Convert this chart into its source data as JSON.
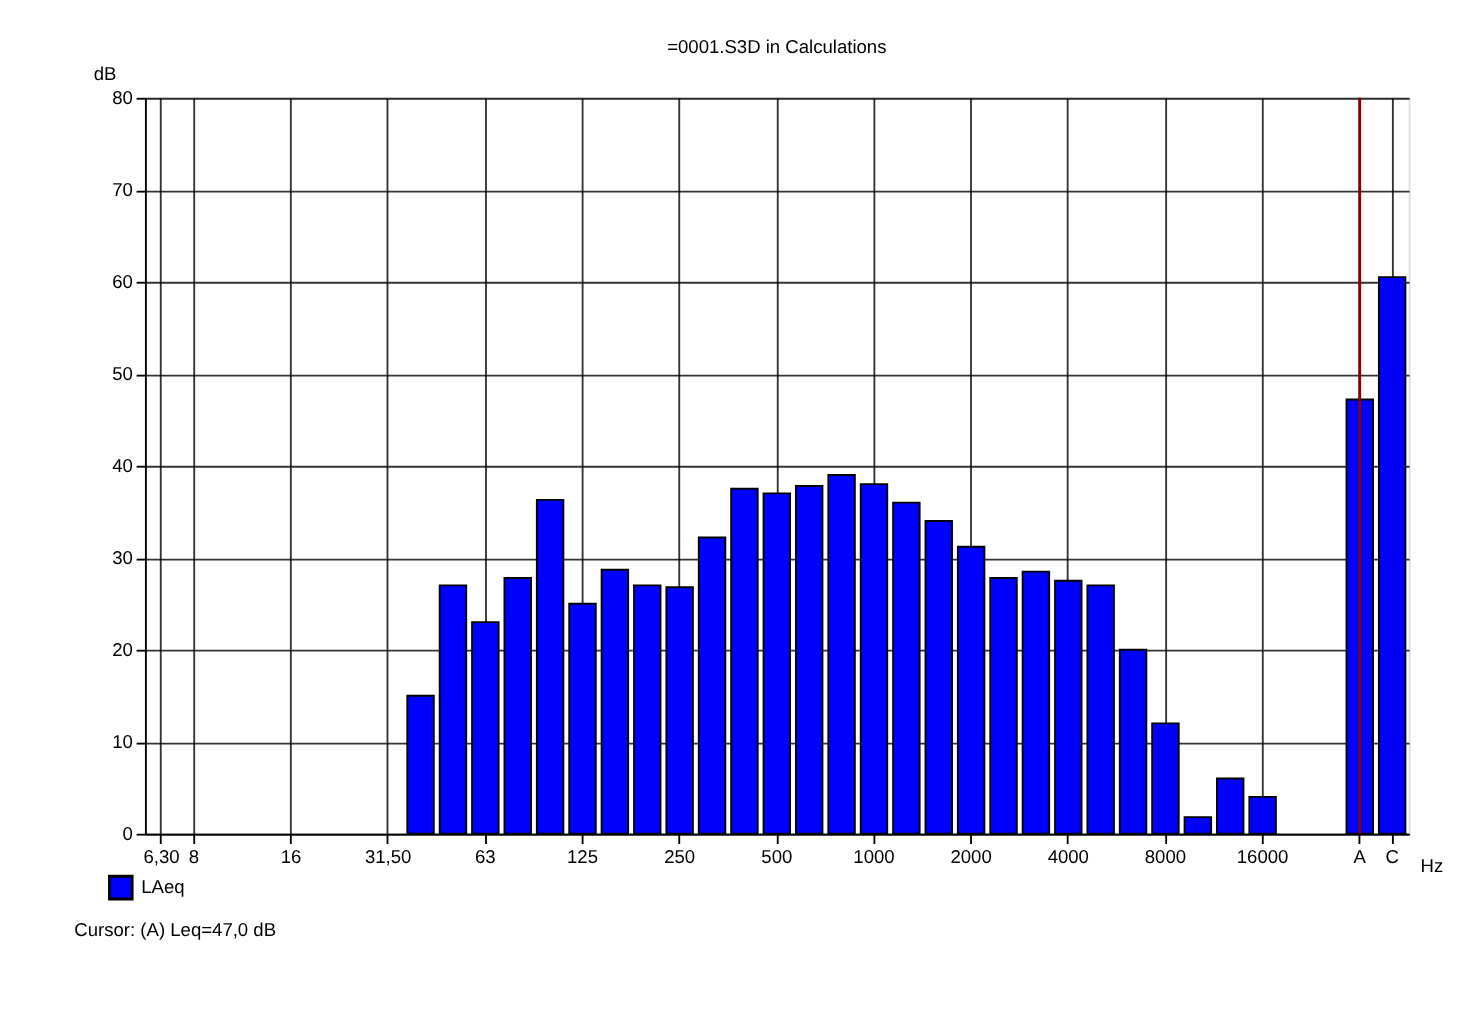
{
  "chart_data": {
    "type": "bar",
    "title": "=0001.S3D in Calculations",
    "ylabel": "dB",
    "xlabel": "Hz",
    "categories": [
      "6,30",
      "8",
      null,
      null,
      "16",
      null,
      null,
      "31,50",
      null,
      null,
      "63",
      null,
      null,
      "125",
      null,
      null,
      "250",
      null,
      null,
      "500",
      null,
      null,
      "1000",
      null,
      null,
      "2000",
      null,
      null,
      "4000",
      null,
      null,
      "8000",
      null,
      null,
      "16000",
      null,
      null,
      "A",
      "C"
    ],
    "series": [
      {
        "name": "LAeq",
        "color": "#0000ff",
        "values": [
          null,
          null,
          null,
          null,
          null,
          null,
          null,
          null,
          15,
          27,
          23,
          27.8,
          36.3,
          25,
          28.7,
          27,
          26.8,
          32.2,
          37.5,
          37,
          37.8,
          39,
          38,
          36,
          34,
          31.2,
          27.8,
          28.5,
          27.5,
          27,
          20,
          12,
          1.8,
          6,
          4,
          null,
          null,
          47.2,
          60.5
        ]
      }
    ],
    "ylim": [
      0,
      80
    ],
    "yticks": [
      0,
      10,
      20,
      30,
      40,
      50,
      60,
      70,
      80
    ],
    "grid": true,
    "legend": "bottom left",
    "ref_lines": [
      {
        "axis": "x",
        "value": "A",
        "color": "#8b0000"
      }
    ],
    "annotations": [
      "Cursor: (A) Leq=47,0 dB"
    ]
  }
}
